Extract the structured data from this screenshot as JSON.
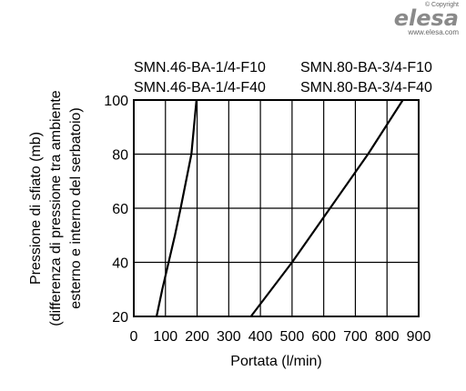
{
  "logo": {
    "copyright": "© Copyright",
    "brand": "elesa",
    "url": "www.elesa.com"
  },
  "chart_data": {
    "type": "line",
    "title": "",
    "xlabel": "Portata (l/min)",
    "ylabel": [
      "Pressione di sfiato (mb)",
      "(differenza di pressione tra ambiente",
      "esterno e interno del serbatoio)"
    ],
    "xlim": [
      0,
      900
    ],
    "ylim": [
      20,
      100
    ],
    "x_ticks": [
      "0",
      "100",
      "200",
      "300",
      "400",
      "500",
      "600",
      "700",
      "800",
      "900"
    ],
    "y_ticks": [
      "20",
      "40",
      "60",
      "80",
      "100"
    ],
    "grid": true,
    "series": [
      {
        "name": [
          "SMN.46-BA-1/4-F10",
          "SMN.46-BA-1/4-F40"
        ],
        "x": [
          72,
          90,
          110,
          130,
          148,
          165,
          182,
          198
        ],
        "y": [
          20,
          30,
          40,
          50,
          60,
          70,
          80,
          100
        ]
      },
      {
        "name": [
          "SMN.80-BA-3/4-F10",
          "SMN.80-BA-3/4-F40"
        ],
        "x": [
          370,
          435,
          500,
          560,
          620,
          680,
          740,
          795,
          850
        ],
        "y": [
          20,
          30,
          40,
          50,
          60,
          70,
          80,
          90,
          100
        ]
      }
    ]
  }
}
